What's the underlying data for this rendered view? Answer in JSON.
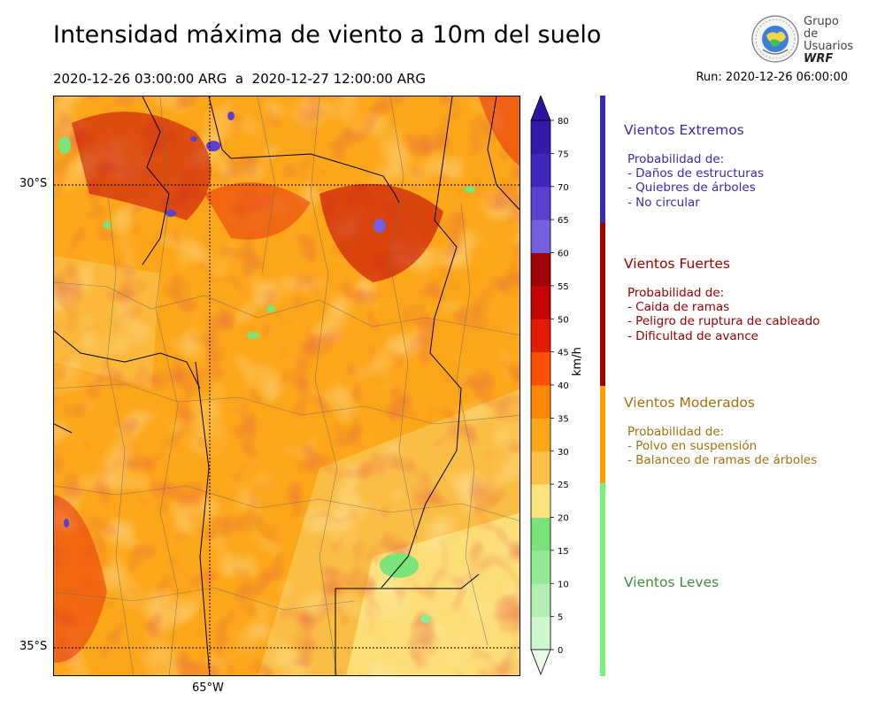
{
  "header": {
    "title": "Intensidad máxima de viento a 10m del suelo",
    "period": "2020-12-26 03:00:00 ARG  a  2020-12-27 12:00:00 ARG",
    "run": "Run: 2020-12-26 06:00:00"
  },
  "logo": {
    "line1": "Grupo de",
    "line2": "Usuarios",
    "line3": "WRF"
  },
  "map": {
    "lat_labels": [
      "30°S",
      "35°S"
    ],
    "lon_labels": [
      "65°W"
    ]
  },
  "colorbar": {
    "unit": "km/h",
    "ticks": [
      "0",
      "5",
      "10",
      "15",
      "20",
      "25",
      "30",
      "35",
      "40",
      "45",
      "50",
      "55",
      "60",
      "65",
      "70",
      "75",
      "80"
    ],
    "colors": [
      "#e8fde8",
      "#cdf7cd",
      "#b1f0b1",
      "#94e994",
      "#7ae37a",
      "#fbe37f",
      "#fbc149",
      "#fca61a",
      "#fc8605",
      "#fd5005",
      "#e41c07",
      "#c30505",
      "#a00505",
      "#7460de",
      "#5a3fd0",
      "#4026bd",
      "#3519a9",
      "#2e13a0"
    ]
  },
  "categories": [
    {
      "title": "Vientos Extremos",
      "color": "#3a2ab0",
      "desc": [
        "Probabilidad de:",
        "- Daños de estructuras",
        "- Quiebres de árboles",
        "- No circular"
      ]
    },
    {
      "title": "Vientos Fuertes",
      "color": "#a00000",
      "desc": [
        "Probabilidad de:",
        "- Caida de ramas",
        "- Peligro de ruptura de cableado",
        "- Dificultad de avance"
      ]
    },
    {
      "title": "Vientos Moderados",
      "color": "#a8700d",
      "desc": [
        "Probabilidad de:",
        "- Polvo en suspensión",
        "- Balanceo de ramas de árboles"
      ]
    },
    {
      "title": "Vientos Leves",
      "color": "#3e8e3e",
      "desc": []
    }
  ],
  "category_bar_colors": [
    "#3a2ab0",
    "#a00000",
    "#ff9f00",
    "#7aef7a"
  ]
}
